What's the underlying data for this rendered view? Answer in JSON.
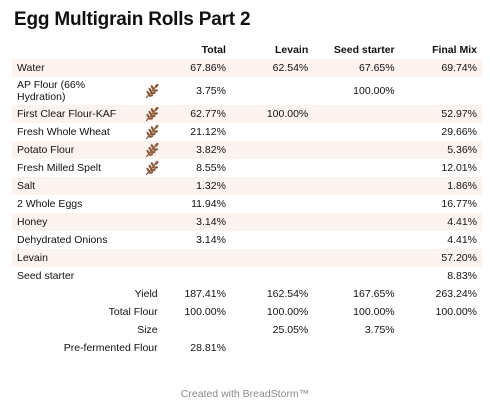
{
  "title": "Egg Multigrain Rolls Part 2",
  "colors": {
    "row_shade": "#fcf3ee",
    "icon": "#8a5a3a",
    "footer": "#8a8a8a"
  },
  "headers": {
    "total": "Total",
    "levain": "Levain",
    "seed": "Seed starter",
    "final": "Final Mix"
  },
  "rows": [
    {
      "name": "Water",
      "flour_icon": false,
      "total": "67.86%",
      "levain": "62.54%",
      "seed": "67.65%",
      "final": "69.74%"
    },
    {
      "name": "AP Flour (66% Hydration)",
      "flour_icon": true,
      "total": "3.75%",
      "levain": "",
      "seed": "100.00%",
      "final": ""
    },
    {
      "name": "First Clear Flour-KAF",
      "flour_icon": true,
      "total": "62.77%",
      "levain": "100.00%",
      "seed": "",
      "final": "52.97%"
    },
    {
      "name": "Fresh Whole Wheat",
      "flour_icon": true,
      "total": "21.12%",
      "levain": "",
      "seed": "",
      "final": "29.66%"
    },
    {
      "name": "Potato Flour",
      "flour_icon": true,
      "total": "3.82%",
      "levain": "",
      "seed": "",
      "final": "5.36%"
    },
    {
      "name": "Fresh Milled Spelt",
      "flour_icon": true,
      "total": "8.55%",
      "levain": "",
      "seed": "",
      "final": "12.01%"
    },
    {
      "name": "Salt",
      "flour_icon": false,
      "total": "1.32%",
      "levain": "",
      "seed": "",
      "final": "1.86%"
    },
    {
      "name": "2 Whole Eggs",
      "flour_icon": false,
      "total": "11.94%",
      "levain": "",
      "seed": "",
      "final": "16.77%"
    },
    {
      "name": "Honey",
      "flour_icon": false,
      "total": "3.14%",
      "levain": "",
      "seed": "",
      "final": "4.41%"
    },
    {
      "name": "Dehydrated Onions",
      "flour_icon": false,
      "total": "3.14%",
      "levain": "",
      "seed": "",
      "final": "4.41%"
    },
    {
      "name": "Levain",
      "flour_icon": false,
      "total": "",
      "levain": "",
      "seed": "",
      "final": "57.20%"
    },
    {
      "name": "Seed starter",
      "flour_icon": false,
      "total": "",
      "levain": "",
      "seed": "",
      "final": "8.83%"
    }
  ],
  "summary": [
    {
      "label": "Yield",
      "total": "187.41%",
      "levain": "162.54%",
      "seed": "167.65%",
      "final": "263.24%"
    },
    {
      "label": "Total Flour",
      "total": "100.00%",
      "levain": "100.00%",
      "seed": "100.00%",
      "final": "100.00%"
    },
    {
      "label": "Size",
      "total": "",
      "levain": "25.05%",
      "seed": "3.75%",
      "final": ""
    },
    {
      "label": "Pre-fermented Flour",
      "total": "28.81%",
      "levain": "",
      "seed": "",
      "final": ""
    }
  ],
  "footer": "Created with BreadStorm™"
}
